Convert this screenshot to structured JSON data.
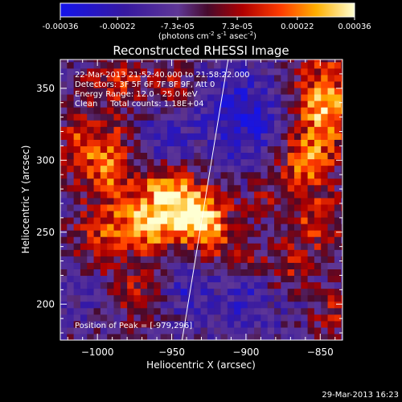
{
  "colorbar": {
    "tick_labels": [
      "-0.00036",
      "-0.00022",
      "-7.3e-05",
      "7.3e-05",
      "0.00022",
      "0.00036"
    ],
    "tick_values": [
      -0.00036,
      -0.00022,
      -7.3e-05,
      7.3e-05,
      0.00022,
      0.00036
    ],
    "range": [
      -0.00036,
      0.00036
    ],
    "units_main": "(photons cm",
    "units_exp1": "-2",
    "units_mid": " s",
    "units_exp2": "-1",
    "units_tail": " asec",
    "units_exp3": "-2",
    "units_close": ")"
  },
  "chart_data": {
    "type": "heatmap",
    "title": "Reconstructed RHESSI Image",
    "xlabel": "Heliocentric X (arcsec)",
    "ylabel": "Heliocentric Y (arcsec)",
    "xlim": [
      -1025,
      -835
    ],
    "ylim": [
      175,
      370
    ],
    "x_ticks": [
      -1000,
      -950,
      -900,
      -850
    ],
    "y_ticks": [
      200,
      250,
      300,
      350
    ],
    "x_tick_labels": [
      "−1000",
      "−950",
      "−900",
      "−850"
    ],
    "y_tick_labels": [
      "200",
      "250",
      "300",
      "350"
    ],
    "annotations": {
      "line1": "22-Mar-2013 21:52:40.000 to 21:58:22.000",
      "line2": "Detectors: 3F 5F 6F 7F 8F 9F, Att 0",
      "line3": "Energy Range: 12.0 - 25.0 keV",
      "line4": "Clean     Total counts: 1.18E+04",
      "peak": "Position of Peak = [-979,296]"
    },
    "peak_position": [
      -979,
      296
    ],
    "limb_line": [
      [
        -943,
        175
      ],
      [
        -912,
        370
      ]
    ],
    "blobs": [
      {
        "x": -940,
        "y": 262,
        "amp": 0.00036,
        "sx": 14,
        "sy": 14
      },
      {
        "x": -968,
        "y": 256,
        "amp": 0.0003,
        "sx": 15,
        "sy": 12
      },
      {
        "x": -955,
        "y": 282,
        "amp": 0.00024,
        "sx": 14,
        "sy": 11
      },
      {
        "x": -923,
        "y": 254,
        "amp": 0.00022,
        "sx": 10,
        "sy": 18
      },
      {
        "x": -992,
        "y": 298,
        "amp": 0.00024,
        "sx": 12,
        "sy": 24
      },
      {
        "x": -1012,
        "y": 312,
        "amp": 0.00018,
        "sx": 9,
        "sy": 15
      },
      {
        "x": -1000,
        "y": 245,
        "amp": 0.00016,
        "sx": 11,
        "sy": 13
      },
      {
        "x": -973,
        "y": 213,
        "amp": 0.00014,
        "sx": 12,
        "sy": 14
      },
      {
        "x": -985,
        "y": 356,
        "amp": 0.00016,
        "sx": 14,
        "sy": 10
      },
      {
        "x": -948,
        "y": 351,
        "amp": 0.00014,
        "sx": 11,
        "sy": 10
      },
      {
        "x": -848,
        "y": 338,
        "amp": 0.00034,
        "sx": 14,
        "sy": 24
      },
      {
        "x": -862,
        "y": 299,
        "amp": 0.00024,
        "sx": 12,
        "sy": 14
      },
      {
        "x": -853,
        "y": 257,
        "amp": 0.0002,
        "sx": 12,
        "sy": 14
      },
      {
        "x": -873,
        "y": 225,
        "amp": 0.00016,
        "sx": 11,
        "sy": 11
      },
      {
        "x": -840,
        "y": 196,
        "amp": 0.00014,
        "sx": 9,
        "sy": 11
      },
      {
        "x": -888,
        "y": 275,
        "amp": 0.00012,
        "sx": 9,
        "sy": 10
      },
      {
        "x": -900,
        "y": 233,
        "amp": 0.00011,
        "sx": 7,
        "sy": 9
      },
      {
        "x": -917,
        "y": 200,
        "amp": 0.0001,
        "sx": 8,
        "sy": 10
      },
      {
        "x": -903,
        "y": 332,
        "amp": -0.00022,
        "sx": 24,
        "sy": 26
      },
      {
        "x": -908,
        "y": 200,
        "amp": -0.00018,
        "sx": 22,
        "sy": 18
      },
      {
        "x": -958,
        "y": 315,
        "amp": -0.00014,
        "sx": 14,
        "sy": 12
      },
      {
        "x": -940,
        "y": 215,
        "amp": -0.00012,
        "sx": 12,
        "sy": 14
      },
      {
        "x": -1010,
        "y": 205,
        "amp": -0.0001,
        "sx": 10,
        "sy": 12
      }
    ],
    "background_level": -6e-05,
    "noise_amplitude": 0.00011
  },
  "footer": {
    "timestamp": "29-Mar-2013 16:23"
  }
}
